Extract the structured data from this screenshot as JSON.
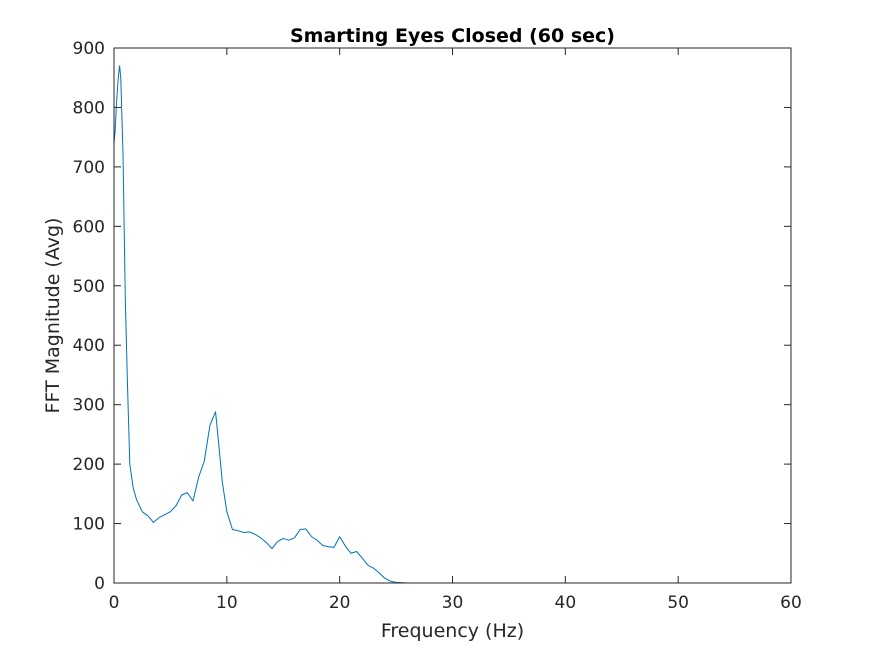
{
  "chart_data": {
    "type": "line",
    "title": "Smarting Eyes Closed (60 sec)",
    "xlabel": "Frequency (Hz)",
    "ylabel": "FFT Magnitude (Avg)",
    "xlim": [
      0,
      60
    ],
    "ylim": [
      0,
      900
    ],
    "xticks": [
      0,
      10,
      20,
      30,
      40,
      50,
      60
    ],
    "yticks": [
      0,
      100,
      200,
      300,
      400,
      500,
      600,
      700,
      800,
      900
    ],
    "grid": false,
    "series": [
      {
        "color": "#0072BD",
        "x": [
          0,
          0.1,
          0.2,
          0.3,
          0.4,
          0.5,
          0.6,
          0.8,
          1.0,
          1.2,
          1.4,
          1.7,
          2.0,
          2.5,
          3.0,
          3.5,
          4.0,
          4.5,
          5.0,
          5.5,
          6.0,
          6.5,
          7.0,
          7.5,
          8.0,
          8.5,
          9.0,
          9.3,
          9.6,
          10.0,
          10.5,
          11.0,
          11.5,
          12.0,
          12.5,
          13.0,
          13.5,
          14.0,
          14.5,
          15.0,
          15.5,
          16.0,
          16.5,
          17.0,
          17.5,
          18.0,
          18.5,
          19.0,
          19.5,
          20.0,
          20.5,
          21.0,
          21.5,
          22.0,
          22.5,
          23.0,
          23.5,
          24.0,
          24.5,
          25.0,
          26.0,
          30.0,
          40.0,
          50.0,
          60.0
        ],
        "y": [
          740,
          760,
          800,
          830,
          855,
          870,
          850,
          720,
          480,
          330,
          200,
          160,
          140,
          120,
          113,
          102,
          110,
          115,
          120,
          130,
          148,
          152,
          138,
          178,
          205,
          265,
          288,
          230,
          170,
          120,
          90,
          88,
          85,
          86,
          82,
          76,
          68,
          58,
          70,
          75,
          72,
          76,
          90,
          91,
          78,
          72,
          63,
          61,
          60,
          78,
          62,
          50,
          53,
          42,
          30,
          25,
          17,
          8,
          3,
          1,
          0,
          0,
          0,
          0,
          0
        ]
      }
    ]
  }
}
